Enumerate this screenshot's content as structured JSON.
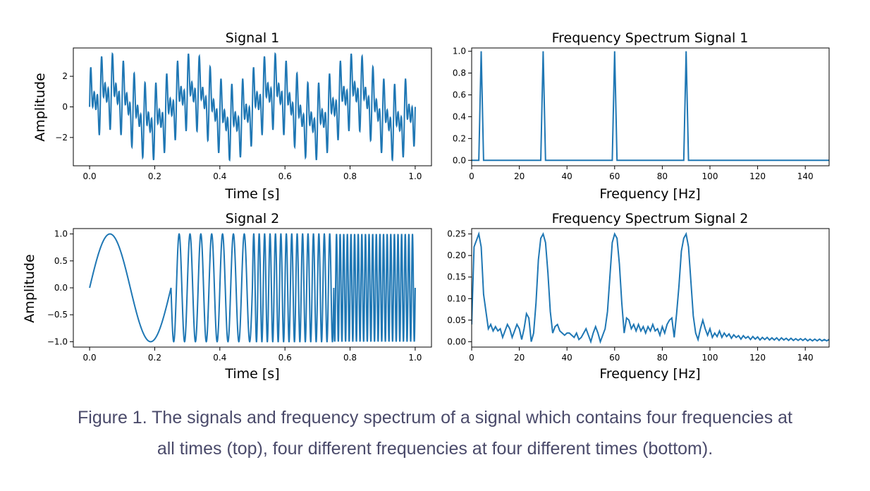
{
  "charts": [
    {
      "id": "signal1",
      "type": "line",
      "title": "Signal 1",
      "xlabel": "Time [s]",
      "ylabel": "Amplitude",
      "xlim": [
        -0.05,
        1.05
      ],
      "ylim": [
        -3.85,
        3.85
      ],
      "xticks": [
        0,
        0.2,
        0.4,
        0.6,
        0.8,
        1.0
      ],
      "xtick_labels": [
        "0.0",
        "0.2",
        "0.4",
        "0.6",
        "0.8",
        "1.0"
      ],
      "yticks": [
        -2,
        0,
        2
      ],
      "ytick_labels": [
        "−2",
        "0",
        "2"
      ],
      "series_color": "#1f77b4",
      "signal": {
        "kind": "sum",
        "freqs_hz": [
          4,
          30,
          60,
          90
        ],
        "amplitude": 1,
        "x_range": [
          0,
          1
        ]
      }
    },
    {
      "id": "spectrum1",
      "type": "line",
      "title": "Frequency Spectrum Signal 1",
      "xlabel": "Frequency [Hz]",
      "ylabel": "",
      "xlim": [
        0,
        150
      ],
      "ylim": [
        -0.05,
        1.03
      ],
      "xticks": [
        0,
        20,
        40,
        60,
        80,
        100,
        120,
        140
      ],
      "xtick_labels": [
        "0",
        "20",
        "40",
        "60",
        "80",
        "100",
        "120",
        "140"
      ],
      "yticks": [
        0,
        0.2,
        0.4,
        0.6,
        0.8,
        1.0
      ],
      "ytick_labels": [
        "0.0",
        "0.2",
        "0.4",
        "0.6",
        "0.8",
        "1.0"
      ],
      "series_color": "#1f77b4",
      "peaks": [
        {
          "x": 4,
          "y": 1.0
        },
        {
          "x": 30,
          "y": 1.0
        },
        {
          "x": 60,
          "y": 1.0
        },
        {
          "x": 90,
          "y": 1.0
        }
      ]
    },
    {
      "id": "signal2",
      "type": "line",
      "title": "Signal 2",
      "xlabel": "Time [s]",
      "ylabel": "Amplitude",
      "xlim": [
        -0.05,
        1.05
      ],
      "ylim": [
        -1.1,
        1.1
      ],
      "xticks": [
        0,
        0.2,
        0.4,
        0.6,
        0.8,
        1.0
      ],
      "xtick_labels": [
        "0.0",
        "0.2",
        "0.4",
        "0.6",
        "0.8",
        "1.0"
      ],
      "yticks": [
        -1.0,
        -0.5,
        0.0,
        0.5,
        1.0
      ],
      "ytick_labels": [
        "−1.0",
        "−0.5",
        "0.0",
        "0.5",
        "1.0"
      ],
      "series_color": "#1f77b4",
      "signal": {
        "kind": "piecewise",
        "segments": [
          {
            "t_start": 0,
            "t_end": 0.25,
            "freq_hz": 4
          },
          {
            "t_start": 0.25,
            "t_end": 0.5,
            "freq_hz": 30
          },
          {
            "t_start": 0.5,
            "t_end": 0.75,
            "freq_hz": 60
          },
          {
            "t_start": 0.75,
            "t_end": 1.0,
            "freq_hz": 90
          }
        ]
      }
    },
    {
      "id": "spectrum2",
      "type": "line",
      "title": "Frequency Spectrum Signal 2",
      "xlabel": "Frequency [Hz]",
      "ylabel": "",
      "xlim": [
        0,
        150
      ],
      "ylim": [
        -0.0125,
        0.2625
      ],
      "xticks": [
        0,
        20,
        40,
        60,
        80,
        100,
        120,
        140
      ],
      "xtick_labels": [
        "0",
        "20",
        "40",
        "60",
        "80",
        "100",
        "120",
        "140"
      ],
      "yticks": [
        0,
        0.05,
        0.1,
        0.15,
        0.2,
        0.25
      ],
      "ytick_labels": [
        "0.00",
        "0.05",
        "0.10",
        "0.15",
        "0.20",
        "0.25"
      ],
      "series_color": "#1f77b4",
      "x": [
        0,
        1,
        2,
        3,
        4,
        5,
        6,
        7,
        8,
        9,
        10,
        11,
        12,
        13,
        14,
        15,
        16,
        17,
        18,
        19,
        20,
        21,
        22,
        23,
        24,
        25,
        26,
        27,
        28,
        29,
        30,
        31,
        32,
        33,
        34,
        35,
        36,
        37,
        38,
        39,
        40,
        41,
        42,
        43,
        44,
        45,
        46,
        47,
        48,
        49,
        50,
        51,
        52,
        53,
        54,
        55,
        56,
        57,
        58,
        59,
        60,
        61,
        62,
        63,
        64,
        65,
        66,
        67,
        68,
        69,
        70,
        71,
        72,
        73,
        74,
        75,
        76,
        77,
        78,
        79,
        80,
        81,
        82,
        83,
        84,
        85,
        86,
        87,
        88,
        89,
        90,
        91,
        92,
        93,
        94,
        95,
        96,
        97,
        98,
        99,
        100,
        101,
        102,
        103,
        104,
        105,
        106,
        107,
        108,
        109,
        110,
        111,
        112,
        113,
        114,
        115,
        116,
        117,
        118,
        119,
        120,
        121,
        122,
        123,
        124,
        125,
        126,
        127,
        128,
        129,
        130,
        131,
        132,
        133,
        134,
        135,
        136,
        137,
        138,
        139,
        140,
        141,
        142,
        143,
        144,
        145,
        146,
        147,
        148,
        149,
        150
      ],
      "y": [
        0.04,
        0.22,
        0.235,
        0.25,
        0.22,
        0.11,
        0.07,
        0.03,
        0.04,
        0.025,
        0.035,
        0.025,
        0.03,
        0.01,
        0.025,
        0.04,
        0.03,
        0.01,
        0.025,
        0.04,
        0.03,
        0.005,
        0.03,
        0.065,
        0.055,
        0.0,
        0.02,
        0.09,
        0.19,
        0.24,
        0.25,
        0.23,
        0.16,
        0.07,
        0.02,
        0.035,
        0.04,
        0.025,
        0.02,
        0.015,
        0.02,
        0.02,
        0.015,
        0.01,
        0.02,
        0.005,
        0.01,
        0.02,
        0.03,
        0.015,
        0.0,
        0.02,
        0.035,
        0.02,
        0.0,
        0.015,
        0.03,
        0.07,
        0.15,
        0.23,
        0.25,
        0.24,
        0.18,
        0.09,
        0.02,
        0.055,
        0.05,
        0.03,
        0.04,
        0.025,
        0.04,
        0.025,
        0.035,
        0.02,
        0.035,
        0.025,
        0.04,
        0.025,
        0.03,
        0.015,
        0.035,
        0.02,
        0.04,
        0.05,
        0.055,
        0.01,
        0.065,
        0.13,
        0.21,
        0.24,
        0.25,
        0.22,
        0.14,
        0.06,
        0.02,
        0.005,
        0.03,
        0.05,
        0.03,
        0.015,
        0.03,
        0.01,
        0.02,
        0.012,
        0.025,
        0.01,
        0.02,
        0.012,
        0.018,
        0.008,
        0.016,
        0.01,
        0.014,
        0.006,
        0.014,
        0.008,
        0.012,
        0.005,
        0.012,
        0.006,
        0.011,
        0.004,
        0.01,
        0.005,
        0.01,
        0.004,
        0.009,
        0.004,
        0.009,
        0.003,
        0.009,
        0.004,
        0.008,
        0.003,
        0.008,
        0.003,
        0.007,
        0.003,
        0.007,
        0.003,
        0.007,
        0.002,
        0.006,
        0.002,
        0.006,
        0.002,
        0.006,
        0.002,
        0.005,
        0.002,
        0.005
      ]
    }
  ],
  "caption": {
    "line1": "Figure 1. The signals and frequency spectrum of a signal which contains four frequencies at",
    "line2": "all times (top), four different frequencies at four different times (bottom)."
  }
}
